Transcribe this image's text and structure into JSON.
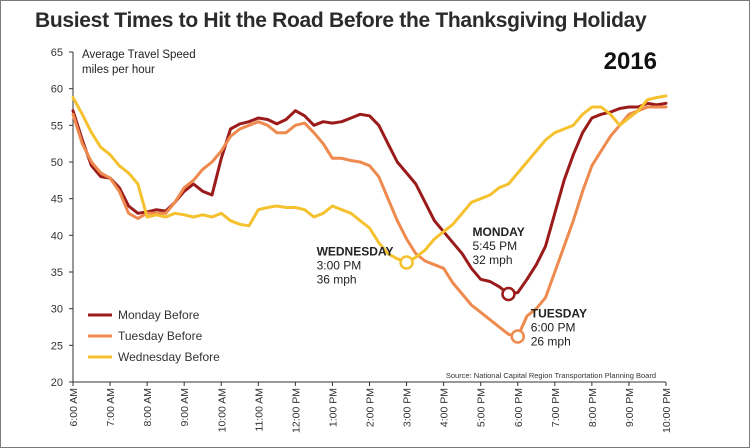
{
  "chart_data": {
    "type": "line",
    "title": "Busiest Times to Hit the Road Before the Thanksgiving Holiday",
    "year_label": "2016",
    "ylabel": "Average Travel Speed",
    "ylabel_units": "miles per hour",
    "ylim": [
      20,
      65
    ],
    "y_ticks": [
      "20",
      "25",
      "30",
      "35",
      "40",
      "45",
      "50",
      "55",
      "60",
      "65"
    ],
    "x_range": [
      6,
      22
    ],
    "x_ticks": [
      "6:00 AM",
      "7:00 AM",
      "8:00 AM",
      "9:00 AM",
      "10:00 AM",
      "11:00 AM",
      "12:00 PM",
      "1:00 PM",
      "2:00 PM",
      "3:00 PM",
      "4:00 PM",
      "5:00 PM",
      "6:00 PM",
      "7:00 PM",
      "8:00 PM",
      "9:00 PM",
      "10:00 PM"
    ],
    "source": "Source: National Capital Region Transportation Planning Board",
    "series": [
      {
        "name": "Monday Before",
        "color": "#9b1b1b",
        "points": [
          [
            6.0,
            57.0
          ],
          [
            6.25,
            53.0
          ],
          [
            6.5,
            49.5
          ],
          [
            6.75,
            48.0
          ],
          [
            7.0,
            47.8
          ],
          [
            7.25,
            46.5
          ],
          [
            7.5,
            44.0
          ],
          [
            7.75,
            43.0
          ],
          [
            8.0,
            43.2
          ],
          [
            8.25,
            43.5
          ],
          [
            8.5,
            43.3
          ],
          [
            8.75,
            44.5
          ],
          [
            9.0,
            46.0
          ],
          [
            9.25,
            47.0
          ],
          [
            9.5,
            46.0
          ],
          [
            9.75,
            45.5
          ],
          [
            10.0,
            50.5
          ],
          [
            10.25,
            54.5
          ],
          [
            10.5,
            55.2
          ],
          [
            10.75,
            55.5
          ],
          [
            11.0,
            56.0
          ],
          [
            11.25,
            55.8
          ],
          [
            11.5,
            55.2
          ],
          [
            11.75,
            55.8
          ],
          [
            12.0,
            57.0
          ],
          [
            12.25,
            56.3
          ],
          [
            12.5,
            55.0
          ],
          [
            12.75,
            55.5
          ],
          [
            13.0,
            55.3
          ],
          [
            13.25,
            55.5
          ],
          [
            13.5,
            56.0
          ],
          [
            13.75,
            56.5
          ],
          [
            14.0,
            56.3
          ],
          [
            14.25,
            55.0
          ],
          [
            14.5,
            52.5
          ],
          [
            14.75,
            50.0
          ],
          [
            15.0,
            48.5
          ],
          [
            15.25,
            47.0
          ],
          [
            15.5,
            44.5
          ],
          [
            15.75,
            42.0
          ],
          [
            16.0,
            40.5
          ],
          [
            16.25,
            39.0
          ],
          [
            16.5,
            37.5
          ],
          [
            16.75,
            35.5
          ],
          [
            17.0,
            34.0
          ],
          [
            17.25,
            33.7
          ],
          [
            17.5,
            33.0
          ],
          [
            17.75,
            32.0
          ],
          [
            18.0,
            32.2
          ],
          [
            18.25,
            34.0
          ],
          [
            18.5,
            36.0
          ],
          [
            18.75,
            38.5
          ],
          [
            19.0,
            43.0
          ],
          [
            19.25,
            47.5
          ],
          [
            19.5,
            51.0
          ],
          [
            19.75,
            54.0
          ],
          [
            20.0,
            56.0
          ],
          [
            20.25,
            56.5
          ],
          [
            20.5,
            56.8
          ],
          [
            20.75,
            57.3
          ],
          [
            21.0,
            57.5
          ],
          [
            21.25,
            57.5
          ],
          [
            21.5,
            58.0
          ],
          [
            21.75,
            57.8
          ],
          [
            22.0,
            58.0
          ]
        ]
      },
      {
        "name": "Tuesday Before",
        "color": "#ee8a4e",
        "points": [
          [
            6.0,
            56.5
          ],
          [
            6.25,
            52.5
          ],
          [
            6.5,
            50.0
          ],
          [
            6.75,
            48.5
          ],
          [
            7.0,
            47.8
          ],
          [
            7.25,
            46.0
          ],
          [
            7.5,
            43.0
          ],
          [
            7.75,
            42.3
          ],
          [
            8.0,
            43.0
          ],
          [
            8.25,
            43.0
          ],
          [
            8.5,
            43.0
          ],
          [
            8.75,
            44.5
          ],
          [
            9.0,
            46.5
          ],
          [
            9.25,
            47.5
          ],
          [
            9.5,
            49.0
          ],
          [
            9.75,
            50.0
          ],
          [
            10.0,
            51.5
          ],
          [
            10.25,
            53.5
          ],
          [
            10.5,
            54.5
          ],
          [
            10.75,
            55.0
          ],
          [
            11.0,
            55.5
          ],
          [
            11.25,
            55.0
          ],
          [
            11.5,
            54.0
          ],
          [
            11.75,
            54.0
          ],
          [
            12.0,
            55.0
          ],
          [
            12.25,
            55.3
          ],
          [
            12.5,
            54.0
          ],
          [
            12.75,
            52.5
          ],
          [
            13.0,
            50.5
          ],
          [
            13.25,
            50.5
          ],
          [
            13.5,
            50.2
          ],
          [
            13.75,
            50.0
          ],
          [
            14.0,
            49.5
          ],
          [
            14.25,
            48.0
          ],
          [
            14.5,
            45.0
          ],
          [
            14.75,
            42.0
          ],
          [
            15.0,
            39.5
          ],
          [
            15.25,
            37.5
          ],
          [
            15.5,
            36.5
          ],
          [
            15.75,
            36.0
          ],
          [
            16.0,
            35.5
          ],
          [
            16.25,
            33.5
          ],
          [
            16.5,
            32.0
          ],
          [
            16.75,
            30.5
          ],
          [
            17.0,
            29.5
          ],
          [
            17.25,
            28.5
          ],
          [
            17.5,
            27.5
          ],
          [
            17.75,
            26.5
          ],
          [
            18.0,
            26.2
          ],
          [
            18.25,
            29.0
          ],
          [
            18.5,
            30.0
          ],
          [
            18.75,
            31.5
          ],
          [
            19.0,
            35.0
          ],
          [
            19.25,
            38.5
          ],
          [
            19.5,
            42.0
          ],
          [
            19.75,
            46.0
          ],
          [
            20.0,
            49.5
          ],
          [
            20.25,
            51.5
          ],
          [
            20.5,
            53.5
          ],
          [
            20.75,
            55.0
          ],
          [
            21.0,
            56.5
          ],
          [
            21.25,
            57.0
          ],
          [
            21.5,
            57.5
          ],
          [
            21.75,
            57.5
          ],
          [
            22.0,
            57.5
          ]
        ]
      },
      {
        "name": "Wednesday Before",
        "color": "#f5c12f",
        "points": [
          [
            6.0,
            58.8
          ],
          [
            6.25,
            56.5
          ],
          [
            6.5,
            54.0
          ],
          [
            6.75,
            52.0
          ],
          [
            7.0,
            51.0
          ],
          [
            7.25,
            49.5
          ],
          [
            7.5,
            48.5
          ],
          [
            7.75,
            47.0
          ],
          [
            8.0,
            42.5
          ],
          [
            8.25,
            42.8
          ],
          [
            8.5,
            42.5
          ],
          [
            8.75,
            43.0
          ],
          [
            9.0,
            42.8
          ],
          [
            9.25,
            42.5
          ],
          [
            9.5,
            42.8
          ],
          [
            9.75,
            42.5
          ],
          [
            10.0,
            43.0
          ],
          [
            10.25,
            42.0
          ],
          [
            10.5,
            41.5
          ],
          [
            10.75,
            41.3
          ],
          [
            11.0,
            43.5
          ],
          [
            11.25,
            43.8
          ],
          [
            11.5,
            44.0
          ],
          [
            11.75,
            43.8
          ],
          [
            12.0,
            43.8
          ],
          [
            12.25,
            43.5
          ],
          [
            12.5,
            42.5
          ],
          [
            12.75,
            43.0
          ],
          [
            13.0,
            44.0
          ],
          [
            13.25,
            43.5
          ],
          [
            13.5,
            43.0
          ],
          [
            13.75,
            42.0
          ],
          [
            14.0,
            41.0
          ],
          [
            14.25,
            39.0
          ],
          [
            14.5,
            37.5
          ],
          [
            14.75,
            36.8
          ],
          [
            15.0,
            36.3
          ],
          [
            15.25,
            37.0
          ],
          [
            15.5,
            38.0
          ],
          [
            15.75,
            39.5
          ],
          [
            16.0,
            40.5
          ],
          [
            16.25,
            41.5
          ],
          [
            16.5,
            43.0
          ],
          [
            16.75,
            44.5
          ],
          [
            17.0,
            45.0
          ],
          [
            17.25,
            45.5
          ],
          [
            17.5,
            46.5
          ],
          [
            17.75,
            47.0
          ],
          [
            18.0,
            48.5
          ],
          [
            18.25,
            50.0
          ],
          [
            18.5,
            51.5
          ],
          [
            18.75,
            53.0
          ],
          [
            19.0,
            54.0
          ],
          [
            19.25,
            54.5
          ],
          [
            19.5,
            55.0
          ],
          [
            19.75,
            56.5
          ],
          [
            20.0,
            57.5
          ],
          [
            20.25,
            57.5
          ],
          [
            20.5,
            56.5
          ],
          [
            20.75,
            55.0
          ],
          [
            21.0,
            56.0
          ],
          [
            21.25,
            57.0
          ],
          [
            21.5,
            58.5
          ],
          [
            21.75,
            58.8
          ],
          [
            22.0,
            59.0
          ]
        ]
      }
    ],
    "annotations": [
      {
        "series": "Wednesday Before",
        "x": 15.0,
        "y": 36.3,
        "lines": [
          "WEDNESDAY",
          "3:00 PM",
          "36 mph"
        ]
      },
      {
        "series": "Monday Before",
        "x": 17.75,
        "y": 32.0,
        "lines": [
          "MONDAY",
          "5:45 PM",
          "32 mph"
        ]
      },
      {
        "series": "Tuesday Before",
        "x": 18.0,
        "y": 26.2,
        "lines": [
          "TUESDAY",
          "6:00 PM",
          "26 mph"
        ]
      }
    ],
    "legend_position": "bottom-left",
    "grid": false
  }
}
